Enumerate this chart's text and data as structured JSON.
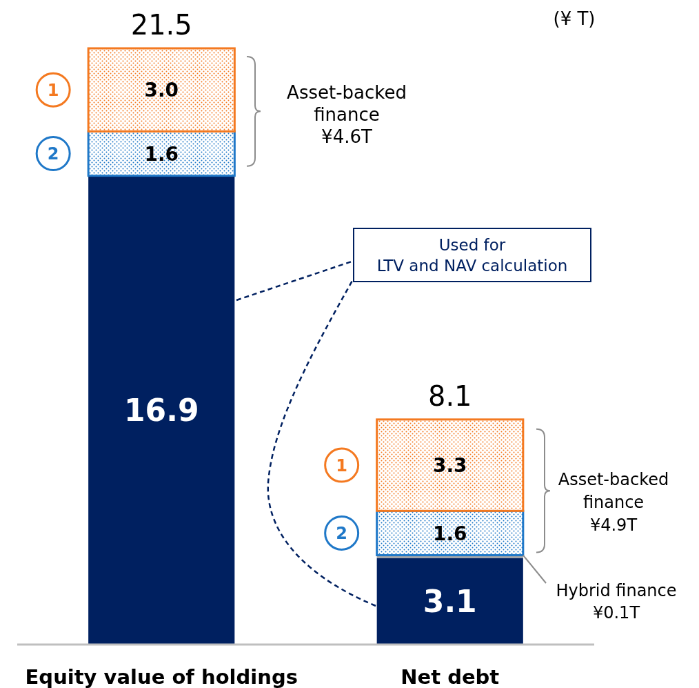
{
  "chart_data": {
    "type": "bar",
    "stacked": true,
    "categories": [
      "Equity value of holdings",
      "Net debt"
    ],
    "series": [
      {
        "color": "#002060",
        "values": [
          16.9,
          3.1
        ],
        "value_labels": [
          "16.9",
          "3.1"
        ]
      },
      {
        "color": "#a6a6a6",
        "values": [
          null,
          0.1
        ],
        "value_labels": [
          null,
          null
        ]
      },
      {
        "name": "2",
        "color": "#1f78c8",
        "values": [
          1.6,
          1.6
        ],
        "value_labels": [
          "1.6",
          "1.6"
        ]
      },
      {
        "name": "1",
        "color": "#f47920",
        "values": [
          3.0,
          3.3
        ],
        "value_labels": [
          "3.0",
          "3.3"
        ]
      }
    ],
    "totals": [
      "21.5",
      "8.1"
    ],
    "annotations": [
      "(¥ T)",
      "Asset-backed\nfinance\n¥4.6T",
      "Asset-backed\nfinance\n¥4.9T",
      "Hybrid finance\n¥0.1T",
      "Used for\nLTV and NAV calculation"
    ],
    "grid": false
  }
}
